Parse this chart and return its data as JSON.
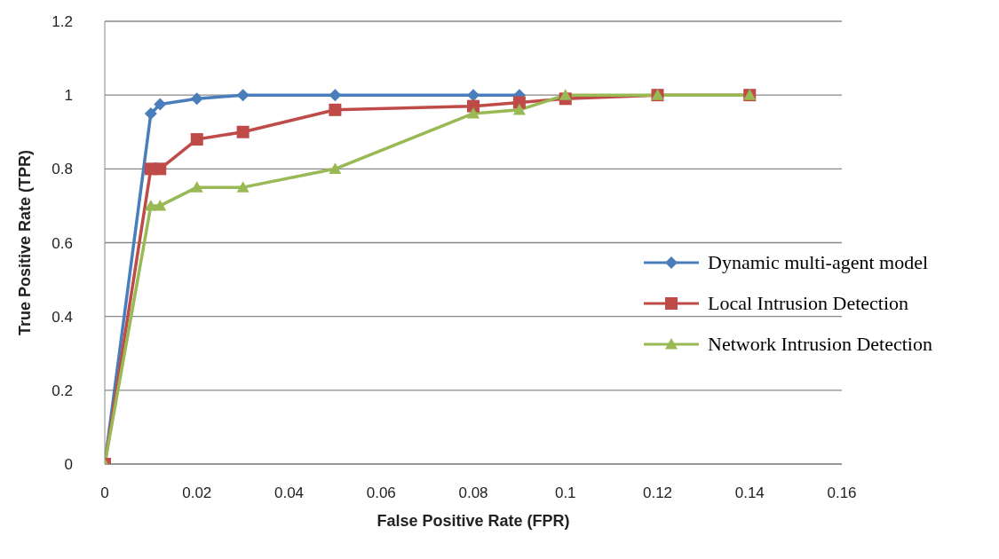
{
  "chart_data": {
    "type": "line",
    "xlabel": "False Positive Rate (FPR)",
    "ylabel": "True Positive Rate (TPR)",
    "xlim": [
      0,
      0.16
    ],
    "xticks": [
      0,
      0.02,
      0.04,
      0.06,
      0.08,
      0.1,
      0.12,
      0.14,
      0.16
    ],
    "ylim": [
      0,
      1.2
    ],
    "yticks": [
      0,
      0.2,
      0.4,
      0.6,
      0.8,
      1,
      1.2
    ],
    "grid": "y",
    "legend": "right",
    "line_style": "solid",
    "series": [
      {
        "name": "Dynamic multi-agent model",
        "color": "#4a7ebb",
        "marker": "diamond",
        "x": [
          0,
          0.01,
          0.012,
          0.02,
          0.03,
          0.05,
          0.08,
          0.09
        ],
        "values": [
          0,
          0.95,
          0.975,
          0.99,
          1,
          1,
          1,
          1
        ]
      },
      {
        "name": "Local Intrusion Detection",
        "color": "#be4b48",
        "marker": "square",
        "x": [
          0,
          0.01,
          0.012,
          0.02,
          0.03,
          0.05,
          0.08,
          0.09,
          0.1,
          0.12,
          0.14
        ],
        "values": [
          0,
          0.8,
          0.8,
          0.88,
          0.9,
          0.96,
          0.97,
          0.98,
          0.99,
          1,
          1
        ]
      },
      {
        "name": "Network Intrusion Detection",
        "color": "#98b954",
        "marker": "triangle",
        "x": [
          0,
          0.01,
          0.012,
          0.02,
          0.03,
          0.05,
          0.08,
          0.09,
          0.1,
          0.12,
          0.14
        ],
        "values": [
          0,
          0.7,
          0.7,
          0.75,
          0.75,
          0.8,
          0.95,
          0.96,
          1,
          1,
          1
        ]
      }
    ]
  }
}
